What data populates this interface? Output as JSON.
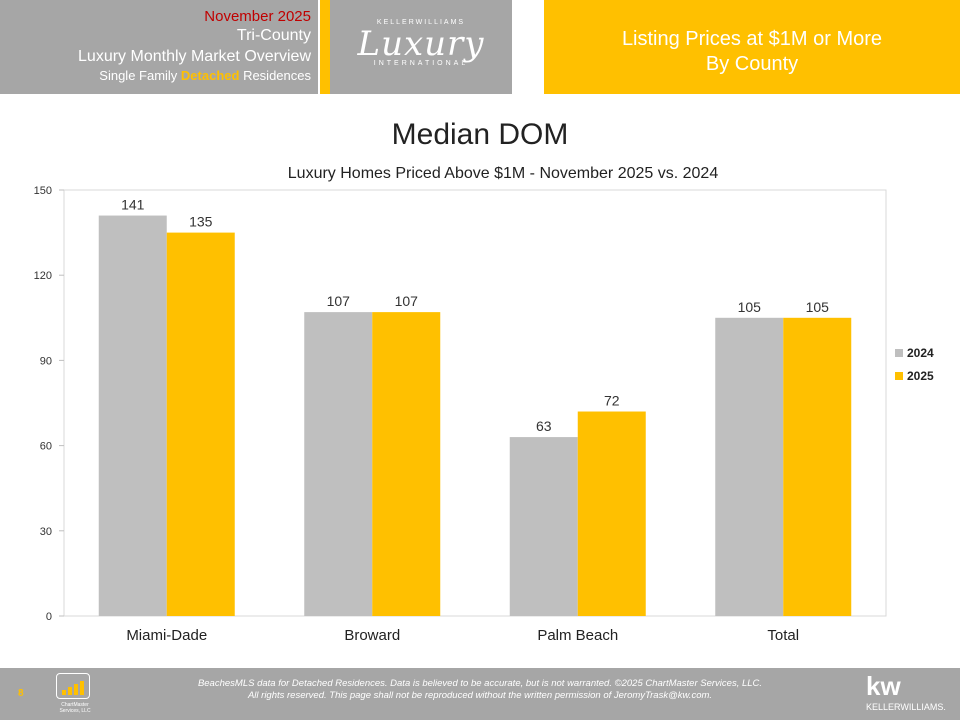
{
  "header": {
    "line1": "November 2025",
    "line2": "Tri-County",
    "line3": "Luxury Monthly Market Overview",
    "line4_pre": "Single Family ",
    "line4_highlight": "Detached",
    "line4_post": " Residences",
    "logo_top": "KELLERWILLIAMS",
    "logo_main": "Luxury",
    "logo_bottom": "INTERNATIONAL",
    "right_line1": "Listing Prices at $1M or More",
    "right_line2": "By County"
  },
  "chart_data": {
    "type": "bar",
    "title": "Median DOM",
    "subtitle": "Luxury Homes Priced Above $1M - November 2025 vs. 2024",
    "categories": [
      "Miami-Dade",
      "Broward",
      "Palm Beach",
      "Total"
    ],
    "series": [
      {
        "name": "2024",
        "values": [
          141,
          107,
          63,
          105
        ],
        "color": "#bfbfbf"
      },
      {
        "name": "2025",
        "values": [
          135,
          107,
          72,
          105
        ],
        "color": "#ffc000"
      }
    ],
    "ylim": [
      0,
      150
    ],
    "yticks": [
      0,
      30,
      60,
      90,
      120,
      150
    ],
    "legend": "right",
    "grid": false
  },
  "footer": {
    "page_number": "8",
    "logo_text_1": "ChartMaster",
    "logo_text_2": "Services, LLC",
    "disclaimer_line1": "BeachesMLS data for Detached Residences.  Data is believed to be accurate, but is not warranted.  ©2025  ChartMaster Services, LLC.",
    "disclaimer_line2": "All rights reserved. This page shall not be reproduced without the written permission of JeromyTrask@kw.com.",
    "brand_mark": "kw",
    "brand_name": "KELLERWILLIAMS."
  }
}
